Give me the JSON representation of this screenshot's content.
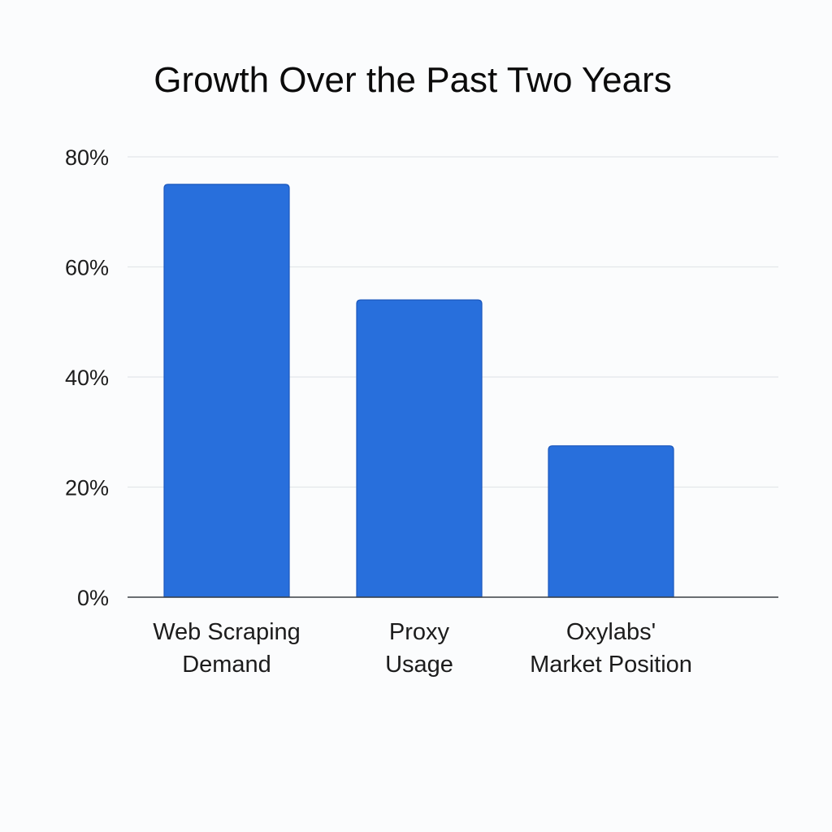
{
  "chart_data": {
    "type": "bar",
    "title": "Growth Over the Past Two Years",
    "categories": [
      [
        "Web Scraping",
        "Demand"
      ],
      [
        "Proxy",
        "Usage"
      ],
      [
        "Oxylabs'",
        "Market Position"
      ]
    ],
    "values": [
      75,
      54,
      27.5
    ],
    "ylim": [
      0,
      80
    ],
    "yticks": [
      0,
      20,
      40,
      60,
      80
    ],
    "ytick_labels": [
      "0%",
      "20%",
      "40%",
      "60%",
      "80%"
    ],
    "xlabel": "",
    "ylabel": "",
    "grid": true,
    "colors": {
      "bar_fill": "#286fdc",
      "bar_edge": "#1c58bd"
    }
  }
}
